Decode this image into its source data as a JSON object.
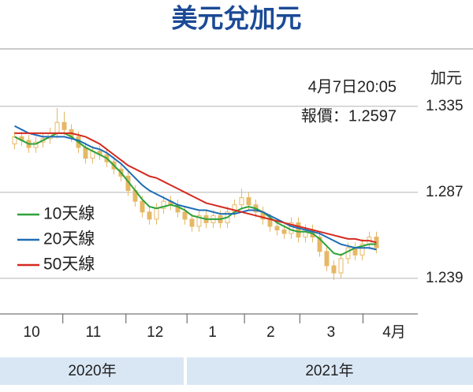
{
  "chart_data": {
    "type": "candlestick",
    "title": "美元兌加元",
    "unit": "加元",
    "annotation": [
      "4月7日20:05",
      "報價：1.2597"
    ],
    "ylim": [
      1.22,
      1.36
    ],
    "yticks": [
      1.239,
      1.287,
      1.335
    ],
    "grid": true,
    "xlim": [
      0,
      60
    ],
    "month_dividers": [
      8.3,
      17.2,
      25.8,
      33.9,
      41.7,
      50.6
    ],
    "month_labels": [
      {
        "value": 3.9,
        "label": "10"
      },
      {
        "value": 12.6,
        "label": "11"
      },
      {
        "value": 21.3,
        "label": "12"
      },
      {
        "value": 29.4,
        "label": "1"
      },
      {
        "value": 37.6,
        "label": "2"
      },
      {
        "value": 46.1,
        "label": "3"
      },
      {
        "value": 55,
        "label": "4月"
      }
    ],
    "years": [
      "2020年",
      "2021年"
    ],
    "candle_color": "#e6b865",
    "candles": {
      "open": [
        1.314,
        1.318,
        1.316,
        1.312,
        1.315,
        1.317,
        1.32,
        1.326,
        1.322,
        1.318,
        1.312,
        1.306,
        1.31,
        1.308,
        1.304,
        1.3,
        1.296,
        1.288,
        1.282,
        1.276,
        1.272,
        1.278,
        1.282,
        1.28,
        1.276,
        1.272,
        1.268,
        1.274,
        1.27,
        1.274,
        1.27,
        1.276,
        1.28,
        1.284,
        1.28,
        1.276,
        1.272,
        1.268,
        1.266,
        1.264,
        1.27,
        1.262,
        1.266,
        1.262,
        1.254,
        1.246,
        1.242,
        1.25,
        1.256,
        1.252,
        1.258,
        1.262
      ],
      "high": [
        1.321,
        1.321,
        1.319,
        1.318,
        1.32,
        1.323,
        1.334,
        1.332,
        1.325,
        1.321,
        1.315,
        1.313,
        1.313,
        1.311,
        1.307,
        1.303,
        1.299,
        1.291,
        1.285,
        1.279,
        1.281,
        1.285,
        1.285,
        1.283,
        1.279,
        1.275,
        1.277,
        1.277,
        1.277,
        1.277,
        1.279,
        1.283,
        1.289,
        1.287,
        1.283,
        1.279,
        1.275,
        1.271,
        1.269,
        1.273,
        1.273,
        1.269,
        1.269,
        1.265,
        1.257,
        1.249,
        1.253,
        1.259,
        1.259,
        1.261,
        1.265,
        1.265
      ],
      "low": [
        1.311,
        1.313,
        1.309,
        1.309,
        1.312,
        1.314,
        1.317,
        1.319,
        1.315,
        1.309,
        1.303,
        1.303,
        1.305,
        1.301,
        1.297,
        1.293,
        1.285,
        1.279,
        1.273,
        1.269,
        1.269,
        1.275,
        1.277,
        1.273,
        1.269,
        1.265,
        1.265,
        1.267,
        1.267,
        1.267,
        1.267,
        1.273,
        1.277,
        1.277,
        1.273,
        1.269,
        1.265,
        1.263,
        1.261,
        1.261,
        1.259,
        1.259,
        1.259,
        1.251,
        1.243,
        1.238,
        1.239,
        1.247,
        1.249,
        1.249,
        1.255,
        1.253
      ],
      "close": [
        1.318,
        1.316,
        1.312,
        1.315,
        1.317,
        1.32,
        1.326,
        1.322,
        1.318,
        1.312,
        1.306,
        1.31,
        1.308,
        1.304,
        1.3,
        1.296,
        1.288,
        1.282,
        1.276,
        1.272,
        1.278,
        1.282,
        1.28,
        1.276,
        1.272,
        1.268,
        1.274,
        1.27,
        1.274,
        1.27,
        1.276,
        1.28,
        1.284,
        1.28,
        1.276,
        1.272,
        1.268,
        1.266,
        1.264,
        1.27,
        1.262,
        1.266,
        1.262,
        1.254,
        1.246,
        1.242,
        1.25,
        1.256,
        1.252,
        1.258,
        1.262,
        1.256
      ]
    },
    "series": [
      {
        "name": "10天線",
        "color": "#2ea33a",
        "values": [
          1.318,
          1.316,
          1.314,
          1.314,
          1.316,
          1.318,
          1.32,
          1.32,
          1.318,
          1.315,
          1.312,
          1.31,
          1.308,
          1.306,
          1.302,
          1.298,
          1.293,
          1.288,
          1.283,
          1.279,
          1.278,
          1.279,
          1.28,
          1.279,
          1.277,
          1.274,
          1.273,
          1.272,
          1.272,
          1.272,
          1.273,
          1.276,
          1.278,
          1.279,
          1.278,
          1.276,
          1.273,
          1.27,
          1.268,
          1.266,
          1.265,
          1.265,
          1.264,
          1.261,
          1.257,
          1.253,
          1.252,
          1.254,
          1.256,
          1.257,
          1.258,
          1.258
        ]
      },
      {
        "name": "20天線",
        "color": "#1f6db5",
        "values": [
          1.324,
          1.322,
          1.32,
          1.319,
          1.318,
          1.318,
          1.318,
          1.318,
          1.317,
          1.316,
          1.314,
          1.312,
          1.311,
          1.309,
          1.306,
          1.303,
          1.299,
          1.295,
          1.291,
          1.288,
          1.286,
          1.284,
          1.282,
          1.28,
          1.279,
          1.278,
          1.277,
          1.277,
          1.276,
          1.275,
          1.275,
          1.275,
          1.276,
          1.277,
          1.277,
          1.276,
          1.274,
          1.272,
          1.27,
          1.268,
          1.267,
          1.266,
          1.265,
          1.264,
          1.262,
          1.26,
          1.258,
          1.257,
          1.256,
          1.256,
          1.256,
          1.255
        ]
      },
      {
        "name": "50天線",
        "color": "#d42a20",
        "values": [
          1.32,
          1.32,
          1.32,
          1.32,
          1.32,
          1.32,
          1.32,
          1.32,
          1.32,
          1.319,
          1.318,
          1.316,
          1.314,
          1.311,
          1.308,
          1.305,
          1.302,
          1.3,
          1.298,
          1.296,
          1.295,
          1.293,
          1.291,
          1.289,
          1.287,
          1.285,
          1.283,
          1.281,
          1.28,
          1.279,
          1.278,
          1.277,
          1.276,
          1.275,
          1.274,
          1.273,
          1.272,
          1.271,
          1.27,
          1.269,
          1.268,
          1.267,
          1.266,
          1.265,
          1.264,
          1.263,
          1.262,
          1.261,
          1.261,
          1.26,
          1.26,
          1.259
        ]
      }
    ]
  }
}
